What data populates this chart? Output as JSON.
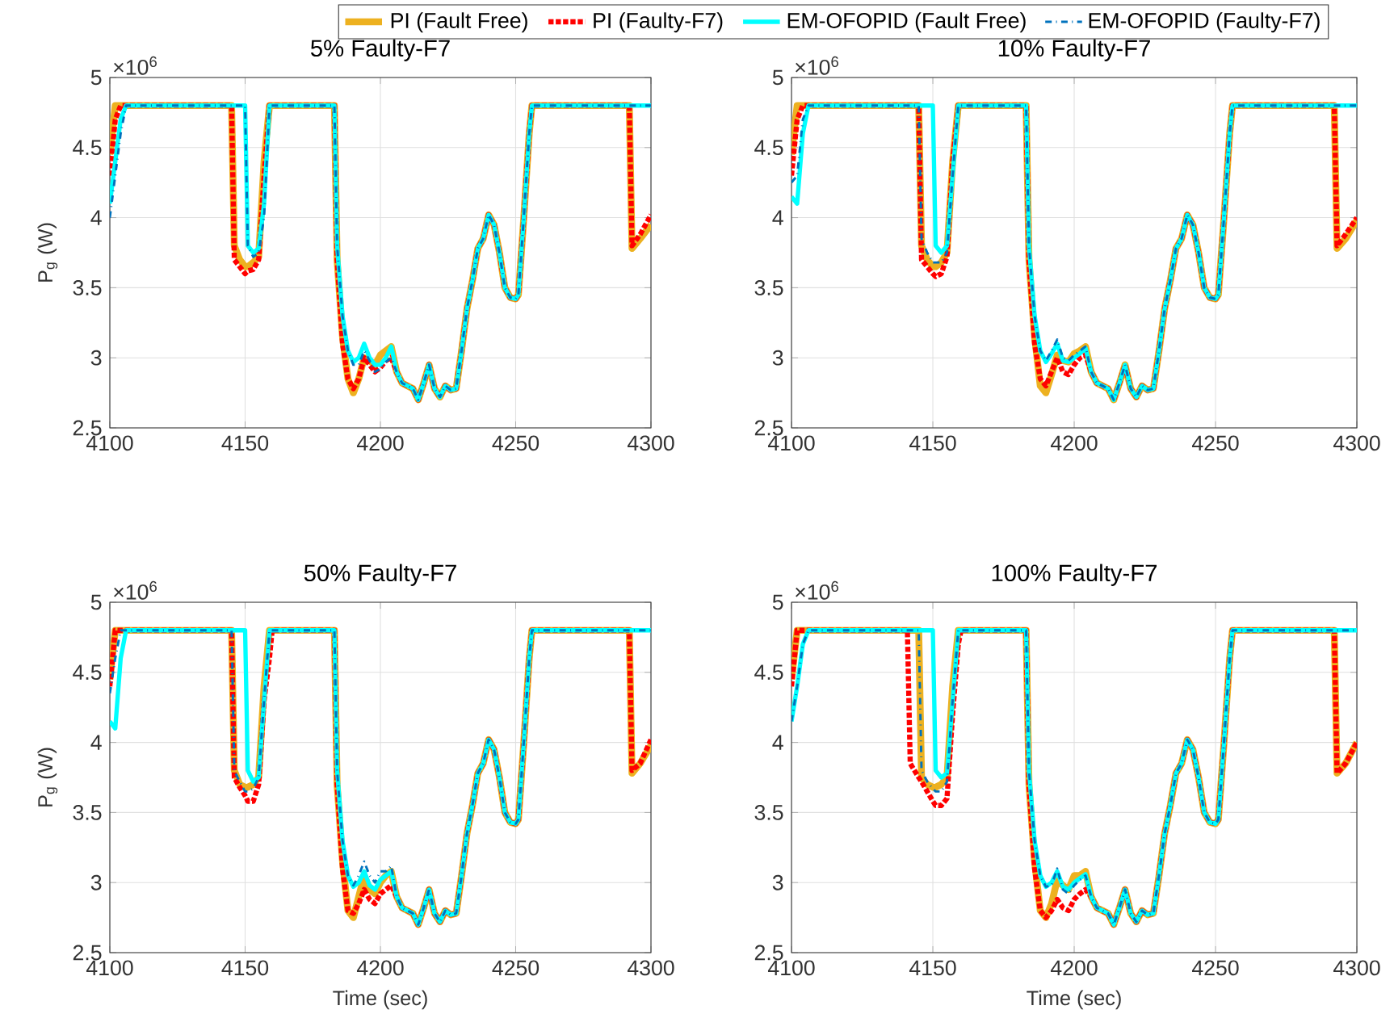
{
  "chart_data": [
    {
      "type": "line",
      "title": "5% Faulty-F7",
      "ylabel": "P$_{g}$ (W)",
      "annotations": [
        "×10$^{6}$"
      ],
      "legend": "top",
      "grid": true,
      "xlim": [
        4100,
        4300
      ],
      "ylim": [
        2.5,
        5
      ],
      "xticks": [
        4100,
        4150,
        4200,
        4250,
        4300
      ],
      "yticks": [
        2.5,
        3,
        3.5,
        4,
        4.5,
        5
      ],
      "x": [
        4100,
        4102,
        4104,
        4106,
        4110,
        4141,
        4142,
        4145,
        4146,
        4148,
        4150,
        4151,
        4153,
        4155,
        4157,
        4159,
        4160,
        4183,
        4184,
        4186,
        4188,
        4190,
        4192,
        4194,
        4196,
        4198,
        4200,
        4202,
        4204,
        4206,
        4208,
        4210,
        4212,
        4214,
        4216,
        4218,
        4220,
        4222,
        4224,
        4226,
        4228,
        4230,
        4232,
        4234,
        4236,
        4238,
        4240,
        4242,
        4244,
        4246,
        4248,
        4250,
        4251,
        4253,
        4255,
        4256,
        4292,
        4293,
        4296,
        4300
      ],
      "series": [
        {
          "name": "PI (Fault Free)",
          "color": "#edb120",
          "line_style": "solid",
          "values": [
            4.45,
            4.8,
            4.8,
            4.8,
            4.8,
            4.8,
            4.8,
            4.8,
            3.8,
            3.7,
            3.65,
            3.65,
            3.68,
            3.72,
            4.4,
            4.8,
            4.8,
            4.8,
            3.7,
            3.15,
            2.85,
            2.75,
            2.85,
            3.0,
            2.98,
            2.95,
            3.02,
            3.05,
            3.08,
            2.9,
            2.82,
            2.8,
            2.78,
            2.7,
            2.82,
            2.95,
            2.78,
            2.72,
            2.8,
            2.77,
            2.78,
            3.05,
            3.35,
            3.55,
            3.78,
            3.85,
            4.02,
            3.95,
            3.75,
            3.5,
            3.43,
            3.42,
            3.45,
            4.0,
            4.6,
            4.8,
            4.8,
            3.78,
            3.85,
            3.95
          ]
        },
        {
          "name": "PI (Faulty-F7)",
          "color": "#ff0000",
          "line_style": "dotted",
          "values": [
            4.3,
            4.7,
            4.8,
            4.8,
            4.8,
            4.8,
            4.8,
            4.8,
            3.7,
            3.65,
            3.6,
            3.62,
            3.63,
            3.7,
            4.3,
            4.8,
            4.8,
            4.8,
            3.7,
            3.1,
            2.85,
            2.78,
            2.85,
            3.0,
            2.95,
            2.9,
            2.93,
            2.98,
            3.0,
            2.9,
            2.82,
            2.8,
            2.78,
            2.7,
            2.82,
            2.95,
            2.78,
            2.72,
            2.8,
            2.77,
            2.78,
            3.05,
            3.35,
            3.55,
            3.78,
            3.85,
            4.02,
            3.95,
            3.75,
            3.5,
            3.43,
            3.42,
            3.45,
            4.0,
            4.6,
            4.8,
            4.8,
            3.8,
            3.88,
            4.02
          ]
        },
        {
          "name": "EM-OFOPID (Fault Free)",
          "color": "#00ffff",
          "line_style": "solid",
          "values": [
            4.1,
            4.4,
            4.7,
            4.8,
            4.8,
            4.8,
            4.8,
            4.8,
            4.8,
            4.8,
            4.8,
            3.8,
            3.75,
            3.78,
            4.1,
            4.8,
            4.8,
            4.8,
            3.8,
            3.3,
            3.05,
            2.97,
            3.0,
            3.1,
            3.0,
            2.95,
            2.95,
            3.0,
            3.08,
            2.9,
            2.82,
            2.8,
            2.78,
            2.7,
            2.82,
            2.95,
            2.78,
            2.72,
            2.8,
            2.77,
            2.78,
            3.05,
            3.35,
            3.55,
            3.78,
            3.85,
            4.02,
            3.95,
            3.75,
            3.5,
            3.43,
            3.42,
            3.45,
            4.0,
            4.6,
            4.8,
            4.8,
            4.8,
            4.8,
            4.8
          ]
        },
        {
          "name": "EM-OFOPID (Faulty-F7)",
          "color": "#0072bd",
          "line_style": "dashed",
          "values": [
            4.0,
            4.3,
            4.6,
            4.8,
            4.8,
            4.8,
            4.8,
            4.8,
            4.8,
            4.8,
            4.8,
            3.8,
            3.72,
            3.75,
            4.0,
            4.8,
            4.8,
            4.8,
            3.8,
            3.3,
            3.05,
            2.95,
            2.95,
            3.05,
            2.98,
            2.9,
            2.92,
            2.97,
            3.0,
            2.9,
            2.82,
            2.8,
            2.78,
            2.7,
            2.82,
            2.95,
            2.78,
            2.72,
            2.8,
            2.77,
            2.78,
            3.05,
            3.35,
            3.55,
            3.78,
            3.85,
            4.02,
            3.95,
            3.75,
            3.5,
            3.43,
            3.42,
            3.45,
            4.0,
            4.6,
            4.8,
            4.8,
            4.8,
            4.8,
            4.8
          ]
        }
      ]
    },
    {
      "type": "line",
      "title": "10% Faulty-F7",
      "annotations": [
        "×10$^{6}$"
      ],
      "grid": true,
      "xlim": [
        4100,
        4300
      ],
      "ylim": [
        2.5,
        5
      ],
      "xticks": [
        4100,
        4150,
        4200,
        4250,
        4300
      ],
      "yticks": [
        2.5,
        3,
        3.5,
        4,
        4.5,
        5
      ],
      "x": [
        4100,
        4102,
        4104,
        4106,
        4110,
        4141,
        4142,
        4145,
        4146,
        4148,
        4150,
        4151,
        4153,
        4155,
        4157,
        4159,
        4160,
        4183,
        4184,
        4186,
        4188,
        4190,
        4192,
        4194,
        4196,
        4198,
        4200,
        4202,
        4204,
        4206,
        4208,
        4210,
        4212,
        4214,
        4216,
        4218,
        4220,
        4222,
        4224,
        4226,
        4228,
        4230,
        4232,
        4234,
        4236,
        4238,
        4240,
        4242,
        4244,
        4246,
        4248,
        4250,
        4251,
        4253,
        4255,
        4256,
        4292,
        4293,
        4296,
        4300
      ],
      "series": [
        {
          "color": "#edb120",
          "line_style": "solid",
          "values": [
            4.45,
            4.8,
            4.8,
            4.8,
            4.8,
            4.8,
            4.8,
            4.8,
            3.8,
            3.7,
            3.65,
            3.65,
            3.68,
            3.75,
            4.4,
            4.8,
            4.8,
            4.8,
            3.7,
            3.15,
            2.8,
            2.75,
            2.88,
            3.02,
            2.98,
            2.97,
            3.03,
            3.05,
            3.08,
            2.9,
            2.82,
            2.8,
            2.78,
            2.7,
            2.82,
            2.95,
            2.78,
            2.72,
            2.8,
            2.77,
            2.78,
            3.05,
            3.35,
            3.55,
            3.78,
            3.85,
            4.02,
            3.95,
            3.75,
            3.5,
            3.43,
            3.42,
            3.45,
            4.0,
            4.6,
            4.8,
            4.8,
            3.78,
            3.85,
            3.98
          ]
        },
        {
          "color": "#ff0000",
          "line_style": "dotted",
          "values": [
            4.3,
            4.7,
            4.8,
            4.8,
            4.8,
            4.8,
            4.8,
            4.8,
            3.7,
            3.65,
            3.6,
            3.58,
            3.6,
            3.72,
            4.4,
            4.8,
            4.8,
            4.8,
            3.7,
            3.1,
            2.85,
            2.8,
            2.9,
            3.0,
            2.9,
            2.88,
            2.95,
            3.0,
            3.02,
            2.9,
            2.82,
            2.8,
            2.78,
            2.7,
            2.82,
            2.95,
            2.78,
            2.72,
            2.8,
            2.77,
            2.78,
            3.05,
            3.35,
            3.55,
            3.78,
            3.85,
            4.02,
            3.95,
            3.75,
            3.5,
            3.43,
            3.42,
            3.45,
            4.0,
            4.6,
            4.8,
            4.8,
            3.8,
            3.88,
            4.0
          ]
        },
        {
          "color": "#00ffff",
          "line_style": "solid",
          "values": [
            4.15,
            4.1,
            4.6,
            4.8,
            4.8,
            4.8,
            4.8,
            4.8,
            4.8,
            4.8,
            4.8,
            3.8,
            3.75,
            3.8,
            4.3,
            4.8,
            4.8,
            4.8,
            3.8,
            3.3,
            3.05,
            2.97,
            3.03,
            3.1,
            2.98,
            2.97,
            3.0,
            3.03,
            3.07,
            2.9,
            2.82,
            2.8,
            2.78,
            2.7,
            2.82,
            2.95,
            2.78,
            2.72,
            2.8,
            2.77,
            2.78,
            3.05,
            3.35,
            3.55,
            3.78,
            3.85,
            4.02,
            3.95,
            3.75,
            3.5,
            3.43,
            3.42,
            3.45,
            4.0,
            4.6,
            4.8,
            4.8,
            4.8,
            4.8,
            4.8
          ]
        },
        {
          "color": "#0072bd",
          "line_style": "dashed",
          "values": [
            4.25,
            4.3,
            4.7,
            4.8,
            4.8,
            4.8,
            4.8,
            4.8,
            3.85,
            3.75,
            3.68,
            3.68,
            3.68,
            3.75,
            4.3,
            4.8,
            4.8,
            4.8,
            3.8,
            3.3,
            3.05,
            2.98,
            3.05,
            3.13,
            3.0,
            2.98,
            3.02,
            3.05,
            3.08,
            2.9,
            2.82,
            2.8,
            2.78,
            2.7,
            2.82,
            2.95,
            2.78,
            2.72,
            2.8,
            2.77,
            2.78,
            3.05,
            3.35,
            3.55,
            3.78,
            3.85,
            4.02,
            3.95,
            3.75,
            3.5,
            3.43,
            3.42,
            3.45,
            4.0,
            4.6,
            4.8,
            4.8,
            4.8,
            4.8,
            4.8
          ]
        }
      ]
    },
    {
      "type": "line",
      "title": "50% Faulty-F7",
      "ylabel": "P$_{g}$ (W)",
      "xlabel": "Time (sec)",
      "annotations": [
        "×10$^{6}$"
      ],
      "grid": true,
      "xlim": [
        4100,
        4300
      ],
      "ylim": [
        2.5,
        5
      ],
      "xticks": [
        4100,
        4150,
        4200,
        4250,
        4300
      ],
      "yticks": [
        2.5,
        3,
        3.5,
        4,
        4.5,
        5
      ],
      "x": [
        4100,
        4102,
        4104,
        4106,
        4110,
        4141,
        4142,
        4145,
        4146,
        4148,
        4150,
        4151,
        4153,
        4155,
        4157,
        4159,
        4160,
        4183,
        4184,
        4186,
        4188,
        4190,
        4192,
        4194,
        4196,
        4198,
        4200,
        4202,
        4204,
        4206,
        4208,
        4210,
        4212,
        4214,
        4216,
        4218,
        4220,
        4222,
        4224,
        4226,
        4228,
        4230,
        4232,
        4234,
        4236,
        4238,
        4240,
        4242,
        4244,
        4246,
        4248,
        4250,
        4251,
        4253,
        4255,
        4256,
        4292,
        4293,
        4296,
        4300
      ],
      "series": [
        {
          "color": "#edb120",
          "line_style": "solid",
          "values": [
            4.45,
            4.8,
            4.8,
            4.8,
            4.8,
            4.8,
            4.8,
            4.8,
            3.8,
            3.7,
            3.68,
            3.68,
            3.7,
            3.75,
            4.4,
            4.8,
            4.8,
            4.8,
            3.7,
            3.15,
            2.8,
            2.75,
            2.9,
            3.05,
            2.95,
            2.92,
            3.0,
            3.05,
            3.08,
            2.9,
            2.82,
            2.8,
            2.78,
            2.7,
            2.82,
            2.95,
            2.78,
            2.72,
            2.8,
            2.77,
            2.78,
            3.05,
            3.35,
            3.55,
            3.78,
            3.85,
            4.02,
            3.95,
            3.75,
            3.5,
            3.43,
            3.42,
            3.45,
            4.0,
            4.6,
            4.8,
            4.8,
            3.78,
            3.85,
            3.98
          ]
        },
        {
          "color": "#ff0000",
          "line_style": "dotted",
          "values": [
            4.4,
            4.8,
            4.8,
            4.8,
            4.8,
            4.8,
            4.8,
            4.8,
            3.75,
            3.68,
            3.62,
            3.58,
            3.58,
            3.7,
            4.3,
            4.6,
            4.8,
            4.8,
            3.7,
            3.1,
            2.8,
            2.78,
            2.85,
            2.95,
            2.88,
            2.85,
            2.92,
            2.95,
            2.98,
            2.9,
            2.82,
            2.8,
            2.78,
            2.7,
            2.82,
            2.95,
            2.78,
            2.72,
            2.8,
            2.77,
            2.78,
            3.05,
            3.35,
            3.55,
            3.78,
            3.85,
            4.02,
            3.95,
            3.75,
            3.5,
            3.43,
            3.42,
            3.45,
            4.0,
            4.6,
            4.8,
            4.8,
            3.8,
            3.85,
            4.02
          ]
        },
        {
          "color": "#00ffff",
          "line_style": "solid",
          "values": [
            4.15,
            4.1,
            4.6,
            4.8,
            4.8,
            4.8,
            4.8,
            4.8,
            4.8,
            4.8,
            4.8,
            3.8,
            3.72,
            3.75,
            4.3,
            4.8,
            4.8,
            4.8,
            3.8,
            3.3,
            3.05,
            2.97,
            3.0,
            3.08,
            2.98,
            2.95,
            3.02,
            3.05,
            3.08,
            2.9,
            2.82,
            2.8,
            2.78,
            2.7,
            2.82,
            2.95,
            2.78,
            2.72,
            2.8,
            2.77,
            2.78,
            3.05,
            3.35,
            3.55,
            3.78,
            3.85,
            4.02,
            3.95,
            3.75,
            3.5,
            3.43,
            3.42,
            3.45,
            4.0,
            4.6,
            4.8,
            4.8,
            4.8,
            4.8,
            4.8
          ]
        },
        {
          "color": "#0072bd",
          "line_style": "dashed",
          "values": [
            4.35,
            4.6,
            4.8,
            4.8,
            4.8,
            4.8,
            4.8,
            4.8,
            3.8,
            3.72,
            3.65,
            3.65,
            3.67,
            3.75,
            4.3,
            4.8,
            4.8,
            4.8,
            3.8,
            3.3,
            3.05,
            2.98,
            3.05,
            3.15,
            3.05,
            3.0,
            3.08,
            3.08,
            3.12,
            2.9,
            2.82,
            2.8,
            2.78,
            2.7,
            2.82,
            2.95,
            2.78,
            2.72,
            2.8,
            2.77,
            2.78,
            3.05,
            3.35,
            3.55,
            3.78,
            3.85,
            4.02,
            3.95,
            3.75,
            3.5,
            3.43,
            3.42,
            3.45,
            4.0,
            4.6,
            4.8,
            4.8,
            4.8,
            4.8,
            4.8
          ]
        }
      ]
    },
    {
      "type": "line",
      "title": "100% Faulty-F7",
      "xlabel": "Time (sec)",
      "annotations": [
        "×10$^{6}$"
      ],
      "grid": true,
      "xlim": [
        4100,
        4300
      ],
      "ylim": [
        2.5,
        5
      ],
      "xticks": [
        4100,
        4150,
        4200,
        4250,
        4300
      ],
      "yticks": [
        2.5,
        3,
        3.5,
        4,
        4.5,
        5
      ],
      "x": [
        4100,
        4102,
        4104,
        4106,
        4110,
        4141,
        4142,
        4145,
        4146,
        4148,
        4150,
        4151,
        4153,
        4155,
        4157,
        4159,
        4160,
        4183,
        4184,
        4186,
        4188,
        4190,
        4192,
        4194,
        4196,
        4198,
        4200,
        4202,
        4204,
        4206,
        4208,
        4210,
        4212,
        4214,
        4216,
        4218,
        4220,
        4222,
        4224,
        4226,
        4228,
        4230,
        4232,
        4234,
        4236,
        4238,
        4240,
        4242,
        4244,
        4246,
        4248,
        4250,
        4251,
        4253,
        4255,
        4256,
        4292,
        4293,
        4296,
        4300
      ],
      "series": [
        {
          "color": "#edb120",
          "line_style": "solid",
          "values": [
            4.45,
            4.8,
            4.8,
            4.8,
            4.8,
            4.8,
            4.8,
            4.8,
            3.75,
            3.7,
            3.68,
            3.68,
            3.7,
            3.75,
            4.4,
            4.8,
            4.8,
            4.8,
            3.7,
            3.15,
            2.8,
            2.75,
            2.85,
            3.02,
            2.98,
            2.95,
            3.05,
            3.05,
            3.08,
            2.9,
            2.82,
            2.8,
            2.78,
            2.7,
            2.82,
            2.95,
            2.78,
            2.72,
            2.8,
            2.77,
            2.78,
            3.05,
            3.35,
            3.55,
            3.78,
            3.85,
            4.02,
            3.95,
            3.75,
            3.5,
            3.43,
            3.42,
            3.45,
            4.0,
            4.6,
            4.8,
            4.8,
            3.78,
            3.85,
            4.0
          ]
        },
        {
          "color": "#ff0000",
          "line_style": "dotted",
          "values": [
            4.4,
            4.8,
            4.8,
            4.8,
            4.8,
            4.8,
            3.85,
            3.75,
            3.72,
            3.65,
            3.58,
            3.55,
            3.55,
            3.6,
            4.2,
            4.7,
            4.8,
            4.8,
            3.7,
            3.1,
            2.8,
            2.75,
            2.8,
            2.88,
            2.82,
            2.8,
            2.88,
            2.92,
            2.95,
            2.9,
            2.82,
            2.8,
            2.78,
            2.7,
            2.82,
            2.95,
            2.78,
            2.72,
            2.8,
            2.77,
            2.78,
            3.05,
            3.35,
            3.55,
            3.78,
            3.85,
            4.02,
            3.95,
            3.75,
            3.5,
            3.43,
            3.42,
            3.45,
            4.0,
            4.6,
            4.8,
            4.8,
            3.78,
            3.85,
            4.0
          ]
        },
        {
          "color": "#00ffff",
          "line_style": "solid",
          "values": [
            4.15,
            4.4,
            4.7,
            4.8,
            4.8,
            4.8,
            4.8,
            4.8,
            4.8,
            4.8,
            4.8,
            3.8,
            3.75,
            3.78,
            4.3,
            4.8,
            4.8,
            4.8,
            3.8,
            3.3,
            3.05,
            2.97,
            3.0,
            3.08,
            2.97,
            2.95,
            3.0,
            3.03,
            3.06,
            2.9,
            2.82,
            2.8,
            2.78,
            2.7,
            2.82,
            2.95,
            2.78,
            2.72,
            2.8,
            2.77,
            2.78,
            3.05,
            3.35,
            3.55,
            3.78,
            3.85,
            4.02,
            3.95,
            3.75,
            3.5,
            3.43,
            3.42,
            3.45,
            4.0,
            4.6,
            4.8,
            4.8,
            4.8,
            4.8,
            4.8
          ]
        },
        {
          "color": "#0072bd",
          "line_style": "dashed",
          "values": [
            4.15,
            4.4,
            4.7,
            4.8,
            4.8,
            4.8,
            4.8,
            4.8,
            3.8,
            3.72,
            3.67,
            3.65,
            3.65,
            3.72,
            4.3,
            4.8,
            4.8,
            4.8,
            3.8,
            3.3,
            3.05,
            2.97,
            2.98,
            3.1,
            2.95,
            2.92,
            2.98,
            3.02,
            3.05,
            2.9,
            2.82,
            2.8,
            2.78,
            2.7,
            2.82,
            2.95,
            2.78,
            2.72,
            2.8,
            2.77,
            2.78,
            3.05,
            3.35,
            3.55,
            3.78,
            3.85,
            4.02,
            3.95,
            3.75,
            3.5,
            3.43,
            3.42,
            3.45,
            4.0,
            4.6,
            4.8,
            4.8,
            4.8,
            4.8,
            4.8
          ]
        }
      ]
    }
  ]
}
